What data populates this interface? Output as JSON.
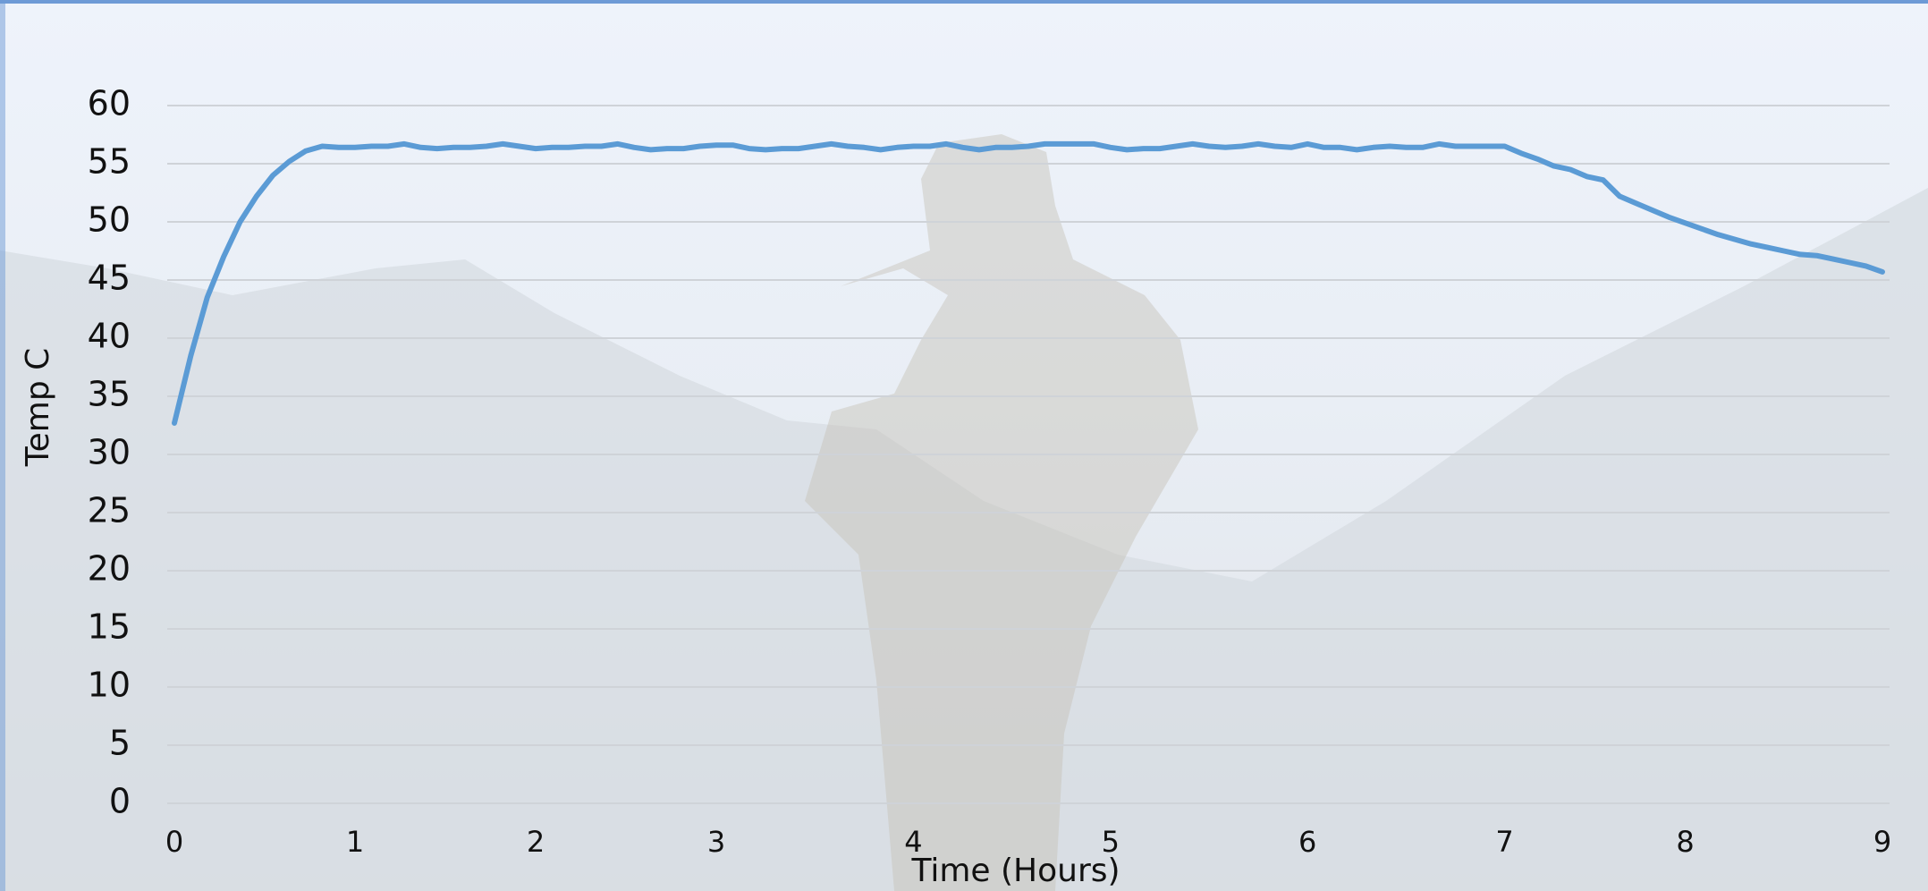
{
  "chart_data": {
    "type": "line",
    "xlabel": "Time (Hours)",
    "ylabel": "Temp C",
    "categories": [
      "0",
      null,
      null,
      null,
      null,
      null,
      null,
      null,
      null,
      null,
      null,
      "1",
      null,
      null,
      null,
      null,
      null,
      null,
      null,
      null,
      null,
      null,
      "2",
      null,
      null,
      null,
      null,
      null,
      null,
      null,
      null,
      null,
      null,
      "3",
      null,
      null,
      null,
      null,
      null,
      null,
      null,
      null,
      null,
      null,
      null,
      "4",
      null,
      null,
      null,
      null,
      null,
      null,
      null,
      null,
      null,
      null,
      null,
      "5",
      null,
      null,
      null,
      null,
      null,
      null,
      null,
      null,
      null,
      null,
      null,
      "6",
      null,
      null,
      null,
      null,
      null,
      null,
      null,
      null,
      null,
      null,
      null,
      "7",
      null,
      null,
      null,
      null,
      null,
      null,
      null,
      null,
      null,
      null,
      "8",
      null,
      null,
      null,
      null,
      null,
      null,
      null,
      null,
      null,
      null,
      null,
      "9"
    ],
    "values": [
      32.7,
      38.5,
      43.5,
      47,
      50,
      52.2,
      54,
      55.2,
      56.1,
      56.5,
      56.4,
      56.4,
      56.5,
      56.5,
      56.7,
      56.4,
      56.3,
      56.4,
      56.4,
      56.5,
      56.7,
      56.5,
      56.3,
      56.4,
      56.4,
      56.5,
      56.5,
      56.7,
      56.4,
      56.2,
      56.3,
      56.3,
      56.5,
      56.6,
      56.6,
      56.3,
      56.2,
      56.3,
      56.3,
      56.5,
      56.7,
      56.5,
      56.4,
      56.2,
      56.4,
      56.5,
      56.5,
      56.7,
      56.4,
      56.2,
      56.4,
      56.4,
      56.5,
      56.7,
      56.7,
      56.7,
      56.7,
      56.4,
      56.2,
      56.3,
      56.3,
      56.5,
      56.7,
      56.5,
      56.4,
      56.5,
      56.7,
      56.5,
      56.4,
      56.7,
      56.4,
      56.4,
      56.2,
      56.4,
      56.5,
      56.4,
      56.4,
      56.7,
      56.5,
      56.5,
      56.5,
      56.5,
      55.9,
      55.4,
      54.8,
      54.5,
      53.9,
      53.6,
      52.2,
      51.6,
      51,
      50.4,
      49.9,
      49.4,
      48.9,
      48.5,
      48.1,
      47.8,
      47.5,
      47.2,
      47.1,
      46.8,
      46.5,
      46.2,
      45.7
    ],
    "color": "#5b9bd5",
    "ylim": [
      0,
      60
    ],
    "yticks": [
      0,
      5,
      10,
      15,
      20,
      25,
      30,
      35,
      40,
      45,
      50,
      55,
      60
    ],
    "grid": true
  }
}
